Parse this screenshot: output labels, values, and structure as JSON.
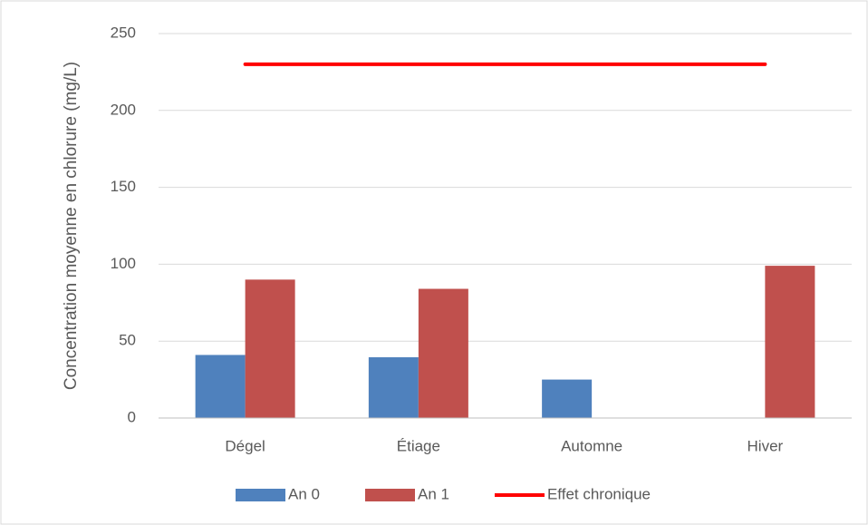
{
  "chart_data": {
    "type": "bar",
    "categories": [
      "Dégel",
      "Étiage",
      "Automne",
      "Hiver"
    ],
    "series": [
      {
        "name": "An 0",
        "type": "bar",
        "color": "#4f81bd",
        "values": [
          41,
          39.5,
          25,
          null
        ]
      },
      {
        "name": "An 1",
        "type": "bar",
        "color": "#c0504d",
        "values": [
          90,
          84,
          null,
          99
        ]
      },
      {
        "name": "Effet chronique",
        "type": "line",
        "color": "#ff0000",
        "values": [
          230,
          230,
          230,
          230
        ]
      }
    ],
    "ylabel": "Concentration moyenne en chlorure (mg/L)",
    "ylim": [
      0,
      250
    ],
    "yticks": [
      0,
      50,
      100,
      150,
      200,
      250
    ],
    "grid": true,
    "legend": "bottom"
  }
}
